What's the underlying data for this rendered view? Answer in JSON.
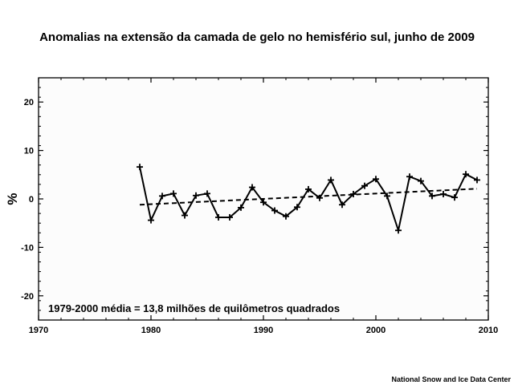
{
  "chart_data": {
    "type": "line",
    "title": "Anomalias na extensão da camada de gelo no hemisfério sul, junho de 2009",
    "xlabel": "",
    "ylabel": "%",
    "xlim": [
      1970,
      2010
    ],
    "ylim": [
      -25,
      25
    ],
    "x_ticks": [
      "1970",
      "1980",
      "1990",
      "2000",
      "2010"
    ],
    "y_ticks": [
      "20",
      "10",
      "0",
      "-10",
      "-20"
    ],
    "annotation": "1979-2000 média = 13,8 milhões de quilômetros quadrados",
    "source": "National Snow and Ice Data Center",
    "grid": false,
    "x": [
      1979,
      1980,
      1981,
      1982,
      1983,
      1984,
      1985,
      1986,
      1987,
      1988,
      1989,
      1990,
      1991,
      1992,
      1993,
      1994,
      1995,
      1996,
      1997,
      1998,
      1999,
      2000,
      2001,
      2002,
      2003,
      2004,
      2005,
      2006,
      2007,
      2008,
      2009
    ],
    "series": [
      {
        "values": [
          6.6,
          -4.4,
          0.6,
          1.1,
          -3.4,
          0.7,
          1.1,
          -3.8,
          -3.8,
          -1.8,
          2.4,
          -0.7,
          -2.4,
          -3.6,
          -1.7,
          2.0,
          0.2,
          3.9,
          -1.2,
          1.0,
          2.7,
          4.1,
          0.6,
          -6.5,
          4.6,
          3.7,
          0.6,
          1.0,
          0.3,
          5.1,
          3.9
        ]
      }
    ],
    "trend": {
      "style": "dashed",
      "x": [
        1979,
        2009
      ],
      "values": [
        -1.2,
        2.1
      ]
    }
  }
}
